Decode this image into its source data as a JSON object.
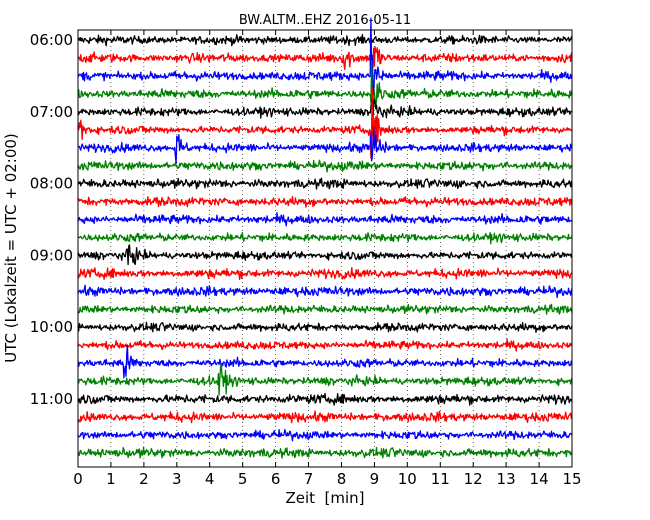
{
  "chart_data": {
    "type": "line",
    "subtype": "seismic-helicorder",
    "title": "BW.ALTM..EHZ 2016-05-11",
    "xlabel": "Zeit  [min]",
    "ylabel": "UTC (Lokalzeit = UTC + 02:00)",
    "xlim": [
      0,
      15
    ],
    "x_ticks": [
      "0",
      "1",
      "2",
      "3",
      "4",
      "5",
      "6",
      "7",
      "8",
      "9",
      "10",
      "11",
      "12",
      "13",
      "14",
      "15"
    ],
    "y_ticks": [
      "06:00",
      "07:00",
      "08:00",
      "09:00",
      "10:00",
      "11:00"
    ],
    "grid": "vertical dotted",
    "line_minutes": 15,
    "color_cycle": [
      "#000000",
      "#ff0000",
      "#0000ff",
      "#008000"
    ],
    "traces": [
      {
        "start": "06:00",
        "amplitude": 0.22,
        "events": []
      },
      {
        "start": "06:15",
        "amplitude": 0.24,
        "events": [
          {
            "t": 8.1,
            "amp": 1.0
          },
          {
            "t": 8.95,
            "amp": 2.2
          }
        ]
      },
      {
        "start": "06:30",
        "amplitude": 0.24,
        "events": [
          {
            "t": 8.95,
            "amp": 3.0
          }
        ]
      },
      {
        "start": "06:45",
        "amplitude": 0.24,
        "events": [
          {
            "t": 8.95,
            "amp": 2.2
          }
        ]
      },
      {
        "start": "07:00",
        "amplitude": 0.22,
        "events": [
          {
            "t": 8.95,
            "amp": 1.8
          }
        ]
      },
      {
        "start": "07:15",
        "amplitude": 0.22,
        "events": [
          {
            "t": 0.1,
            "amp": 0.8
          },
          {
            "t": 8.95,
            "amp": 1.8
          }
        ]
      },
      {
        "start": "07:30",
        "amplitude": 0.22,
        "events": [
          {
            "t": 3.0,
            "amp": 1.2
          },
          {
            "t": 8.95,
            "amp": 1.8
          }
        ]
      },
      {
        "start": "07:45",
        "amplitude": 0.24,
        "events": []
      },
      {
        "start": "08:00",
        "amplitude": 0.24,
        "events": []
      },
      {
        "start": "08:15",
        "amplitude": 0.24,
        "events": []
      },
      {
        "start": "08:30",
        "amplitude": 0.24,
        "events": []
      },
      {
        "start": "08:45",
        "amplitude": 0.22,
        "events": []
      },
      {
        "start": "09:00",
        "amplitude": 0.22,
        "events": [
          {
            "t": 1.55,
            "amp": 1.0
          }
        ]
      },
      {
        "start": "09:15",
        "amplitude": 0.24,
        "events": []
      },
      {
        "start": "09:30",
        "amplitude": 0.24,
        "events": []
      },
      {
        "start": "09:45",
        "amplitude": 0.22,
        "events": []
      },
      {
        "start": "10:00",
        "amplitude": 0.22,
        "events": []
      },
      {
        "start": "10:15",
        "amplitude": 0.22,
        "events": []
      },
      {
        "start": "10:30",
        "amplitude": 0.22,
        "events": [
          {
            "t": 1.45,
            "amp": 1.0
          }
        ]
      },
      {
        "start": "10:45",
        "amplitude": 0.22,
        "events": [
          {
            "t": 4.3,
            "amp": 1.2
          }
        ]
      },
      {
        "start": "11:00",
        "amplitude": 0.24,
        "events": []
      },
      {
        "start": "11:15",
        "amplitude": 0.24,
        "events": []
      },
      {
        "start": "11:30",
        "amplitude": 0.22,
        "events": []
      },
      {
        "start": "11:45",
        "amplitude": 0.24,
        "events": []
      }
    ]
  }
}
